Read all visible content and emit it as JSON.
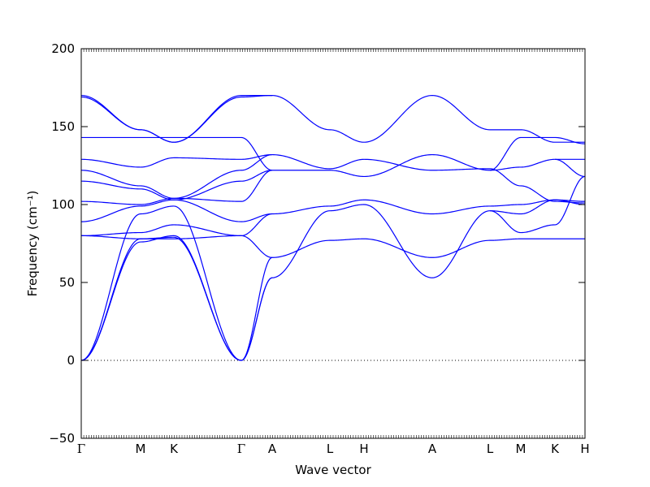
{
  "chart_data": {
    "type": "line",
    "title": "",
    "xlabel": "Wave vector",
    "ylabel": "Frequency (cm⁻¹)",
    "ylim": [
      -50,
      200
    ],
    "yticks": [
      -50,
      0,
      50,
      100,
      150,
      200
    ],
    "grid": false,
    "legend": "none",
    "line_color": "#0000ff",
    "zero_line": true,
    "high_symmetry_points": [
      "Γ",
      "M",
      "K",
      "Γ",
      "A",
      "L",
      "H",
      "A",
      "L",
      "M",
      "K",
      "H"
    ],
    "segments": [
      {
        "from": "Γ",
        "to": "M",
        "bands": [
          [
            0,
            76
          ],
          [
            0,
            78
          ],
          [
            0,
            94
          ],
          [
            80,
            82
          ],
          [
            80,
            78
          ],
          [
            89,
            99
          ],
          [
            102,
            100
          ],
          [
            115,
            110
          ],
          [
            122,
            112
          ],
          [
            129,
            124
          ],
          [
            143,
            143
          ],
          [
            169,
            148
          ],
          [
            170,
            148
          ]
        ]
      },
      {
        "from": "M",
        "to": "K",
        "bands": [
          [
            76,
            80
          ],
          [
            78,
            79
          ],
          [
            94,
            99
          ],
          [
            82,
            87
          ],
          [
            78,
            78
          ],
          [
            99,
            103
          ],
          [
            100,
            104
          ],
          [
            110,
            103
          ],
          [
            112,
            104
          ],
          [
            124,
            130
          ],
          [
            143,
            143
          ],
          [
            148,
            140
          ],
          [
            148,
            140
          ]
        ]
      },
      {
        "from": "K",
        "to": "Γ",
        "bands": [
          [
            80,
            0
          ],
          [
            79,
            0
          ],
          [
            99,
            0
          ],
          [
            87,
            80
          ],
          [
            78,
            80
          ],
          [
            103,
            89
          ],
          [
            104,
            102
          ],
          [
            103,
            115
          ],
          [
            104,
            122
          ],
          [
            130,
            129
          ],
          [
            143,
            143
          ],
          [
            140,
            169
          ],
          [
            140,
            170
          ]
        ]
      },
      {
        "from": "Γ",
        "to": "A",
        "bands": [
          [
            0,
            53
          ],
          [
            0,
            66
          ],
          [
            0,
            53
          ],
          [
            80,
            66
          ],
          [
            80,
            94
          ],
          [
            89,
            94
          ],
          [
            102,
            122
          ],
          [
            115,
            122
          ],
          [
            122,
            132
          ],
          [
            129,
            132
          ],
          [
            143,
            122
          ],
          [
            169,
            170
          ],
          [
            170,
            170
          ]
        ]
      },
      {
        "from": "A",
        "to": "L",
        "bands": [
          [
            53,
            96
          ],
          [
            66,
            77
          ],
          [
            94,
            99
          ],
          [
            122,
            122
          ],
          [
            132,
            123
          ],
          [
            170,
            148
          ]
        ]
      },
      {
        "from": "L",
        "to": "H",
        "bands": [
          [
            96,
            100
          ],
          [
            77,
            78
          ],
          [
            99,
            103
          ],
          [
            122,
            118
          ],
          [
            123,
            129
          ],
          [
            148,
            140
          ]
        ]
      },
      {
        "from": "H",
        "to": "A",
        "bands": [
          [
            100,
            53
          ],
          [
            78,
            66
          ],
          [
            103,
            94
          ],
          [
            118,
            132
          ],
          [
            129,
            122
          ],
          [
            140,
            170
          ]
        ]
      },
      {
        "from": "A",
        "to": "L",
        "bands": [
          [
            53,
            96
          ],
          [
            66,
            77
          ],
          [
            94,
            99
          ],
          [
            132,
            122
          ],
          [
            122,
            123
          ],
          [
            170,
            148
          ]
        ]
      },
      {
        "from": "L",
        "to": "M",
        "bands": [
          [
            96,
            94
          ],
          [
            77,
            78
          ],
          [
            99,
            100
          ],
          [
            122,
            124
          ],
          [
            123,
            112
          ],
          [
            148,
            148
          ],
          [
            122,
            143
          ],
          [
            96,
            82
          ]
        ]
      },
      {
        "from": "M",
        "to": "K",
        "bands": [
          [
            94,
            103
          ],
          [
            78,
            78
          ],
          [
            100,
            103
          ],
          [
            124,
            129
          ],
          [
            112,
            102
          ],
          [
            148,
            140
          ],
          [
            143,
            143
          ],
          [
            82,
            87
          ]
        ]
      },
      {
        "from": "K",
        "to": "H",
        "bands": [
          [
            103,
            100
          ],
          [
            78,
            78
          ],
          [
            103,
            102
          ],
          [
            129,
            129
          ],
          [
            102,
            101
          ],
          [
            140,
            140
          ],
          [
            143,
            139
          ],
          [
            87,
            118
          ],
          [
            129,
            118
          ]
        ]
      }
    ]
  }
}
